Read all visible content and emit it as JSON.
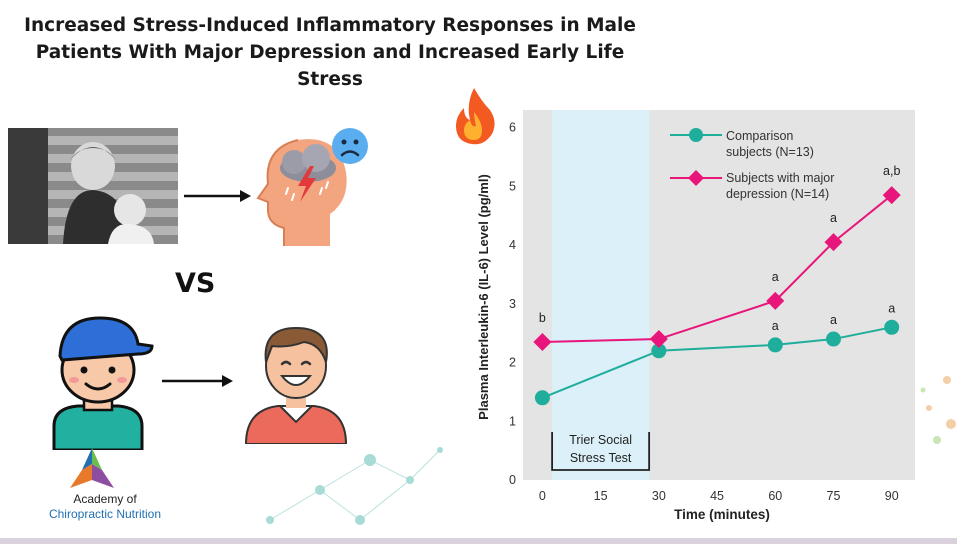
{
  "slide": {
    "title_line1": "Increased Stress-Induced Inflammatory Responses in Male",
    "title_line2": "Patients With Major Depression and Increased Early Life Stress",
    "vs_label": "VS",
    "logo_line1": "Academy of",
    "logo_line2": "Chiropractic Nutrition"
  },
  "icons": [
    "fire-icon",
    "child-photo",
    "arrow-right-icon",
    "stressed-head-icon",
    "sad-face-icon",
    "boy-cap-icon",
    "happy-man-icon",
    "logo-icon"
  ],
  "colors": {
    "comparison": "#1fae9c",
    "depression": "#e8157a",
    "stress_band": "#dbf0f8",
    "plot_bg": "#e4e4e4"
  },
  "chart_data": {
    "type": "line",
    "xlabel": "Time (minutes)",
    "ylabel": "Plasma Interleukin-6 (IL-6) Level (pg/ml)",
    "x_ticks": [
      "0",
      "15",
      "30",
      "45",
      "60",
      "75",
      "90"
    ],
    "y_ticks": [
      "0",
      "1",
      "2",
      "3",
      "4",
      "5",
      "6"
    ],
    "xlim": [
      -5,
      96
    ],
    "ylim": [
      0,
      6.3
    ],
    "stress_window": {
      "start": 2.5,
      "end": 27.5,
      "label_line1": "Trier Social",
      "label_line2": "Stress Test"
    },
    "series": [
      {
        "name_line1": "Comparison",
        "name_line2": "subjects (N=13)",
        "marker": "circle",
        "x": [
          0,
          30,
          60,
          75,
          90
        ],
        "y": [
          1.4,
          2.2,
          2.3,
          2.4,
          2.6
        ],
        "labels": [
          "",
          "",
          "a",
          "a",
          "a"
        ]
      },
      {
        "name_line1": "Subjects with major",
        "name_line2": "depression (N=14)",
        "marker": "diamond",
        "x": [
          0,
          30,
          60,
          75,
          90
        ],
        "y": [
          2.35,
          2.4,
          3.05,
          4.05,
          4.85
        ],
        "labels": [
          "b",
          "",
          "a",
          "a",
          "a,b"
        ]
      }
    ]
  }
}
